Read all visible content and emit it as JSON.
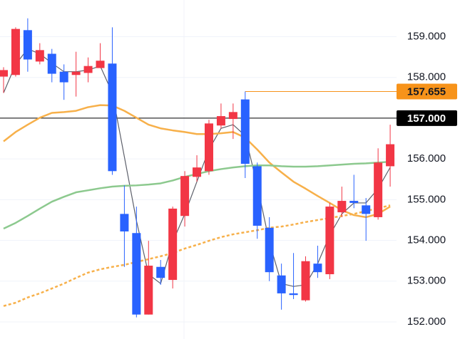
{
  "chart_data": {
    "type": "candlestick",
    "up_color": "#f23645",
    "down_color": "#2962ff",
    "open": [
      158.02,
      158.06,
      159.16,
      158.39,
      158.58,
      158.14,
      158.06,
      158.11,
      158.23,
      158.34,
      154.65,
      154.18,
      152.18,
      153.35,
      153.03,
      154.6,
      155.56,
      155.7,
      156.82,
      156.98,
      157.46,
      155.82,
      154.31,
      153.14,
      152.7,
      152.53,
      153.43,
      153.17,
      154.69,
      154.97,
      154.86,
      154.57,
      155.82
    ],
    "close": [
      158.18,
      159.19,
      158.44,
      158.67,
      158.09,
      157.88,
      158.14,
      158.28,
      158.41,
      155.7,
      154.22,
      152.18,
      153.38,
      153.08,
      154.78,
      155.58,
      155.79,
      156.87,
      157.05,
      157.15,
      155.88,
      154.36,
      153.22,
      152.7,
      152.66,
      153.49,
      153.22,
      154.83,
      154.97,
      154.92,
      154.65,
      155.91,
      156.36
    ],
    "high": [
      158.25,
      159.23,
      159.45,
      158.84,
      158.7,
      158.32,
      158.63,
      158.49,
      158.84,
      159.23,
      155.35,
      154.83,
      153.99,
      153.52,
      154.83,
      155.7,
      156.09,
      156.96,
      157.36,
      157.36,
      157.655,
      155.91,
      154.57,
      153.43,
      153.69,
      153.61,
      153.87,
      154.92,
      155.32,
      155.61,
      155.04,
      156.26,
      156.84
    ],
    "low": [
      157.62,
      158.02,
      158.14,
      158.32,
      157.88,
      157.45,
      157.53,
      157.88,
      158.23,
      155.61,
      153.35,
      152.11,
      152.18,
      152.91,
      152.82,
      154.34,
      155.44,
      155.61,
      156.75,
      156.49,
      155.53,
      154.04,
      153.0,
      152.3,
      152.56,
      152.5,
      153.08,
      153.05,
      154.57,
      154.79,
      153.99,
      154.51,
      155.32
    ],
    "lines": [
      {
        "color": "#5d606b",
        "width": 1.2,
        "dashed": false,
        "values": [
          157.62,
          158.32,
          158.7,
          158.58,
          158.35,
          158.14,
          158.14,
          158.18,
          158.28,
          157.62,
          156.05,
          154.48,
          153.17,
          152.94,
          153.96,
          154.65,
          155.44,
          156.23,
          156.75,
          156.84,
          156.57,
          155.35,
          153.96,
          152.94,
          152.87,
          152.91,
          153.43,
          154.13,
          154.65,
          154.92,
          154.92,
          155.27,
          155.79
        ]
      },
      {
        "color": "#f7b04a",
        "width": 2.5,
        "dashed": false,
        "values": [
          156.43,
          156.66,
          156.84,
          157.01,
          157.13,
          157.15,
          157.18,
          157.27,
          157.32,
          157.31,
          157.18,
          157.01,
          156.84,
          156.75,
          156.7,
          156.66,
          156.61,
          156.61,
          156.63,
          156.66,
          156.52,
          156.23,
          155.91,
          155.67,
          155.44,
          155.27,
          155.09,
          154.92,
          154.74,
          154.62,
          154.57,
          154.65,
          154.83
        ]
      },
      {
        "color": "#8cc98e",
        "width": 2.5,
        "dashed": false,
        "values": [
          154.29,
          154.43,
          154.6,
          154.78,
          154.95,
          155.07,
          155.18,
          155.23,
          155.28,
          155.32,
          155.34,
          155.35,
          155.37,
          155.4,
          155.47,
          155.56,
          155.63,
          155.7,
          155.75,
          155.79,
          155.82,
          155.84,
          155.84,
          155.82,
          155.81,
          155.81,
          155.82,
          155.84,
          155.86,
          155.88,
          155.89,
          155.91,
          155.93
        ]
      },
      {
        "color": "#f7b04a",
        "width": 2.5,
        "dashed": true,
        "values": [
          152.39,
          152.47,
          152.6,
          152.7,
          152.82,
          152.94,
          153.08,
          153.21,
          153.29,
          153.35,
          153.4,
          153.47,
          153.54,
          153.61,
          153.69,
          153.8,
          153.89,
          153.99,
          154.08,
          154.15,
          154.2,
          154.25,
          154.31,
          154.34,
          154.39,
          154.45,
          154.5,
          154.55,
          154.6,
          154.65,
          154.72,
          154.79,
          154.86
        ]
      }
    ],
    "markers": [
      {
        "value": 157.655,
        "label": "157.655",
        "color": "#f7931a",
        "text_color": "#131722"
      },
      {
        "value": 157,
        "label": "157.000",
        "color": "#000000",
        "text_color": "#ffffff"
      }
    ],
    "ylim": [
      151.58,
      159.9
    ],
    "yticks": [
      {
        "value": 152,
        "label": "152.000"
      },
      {
        "value": 153,
        "label": "153.000"
      },
      {
        "value": 154,
        "label": "154.000"
      },
      {
        "value": 155,
        "label": "155.000"
      },
      {
        "value": 156,
        "label": "156.000"
      },
      {
        "value": 157,
        "label": "157.000"
      },
      {
        "value": 158,
        "label": "158.000"
      },
      {
        "value": 159,
        "label": "159.000"
      }
    ],
    "grid": true
  }
}
